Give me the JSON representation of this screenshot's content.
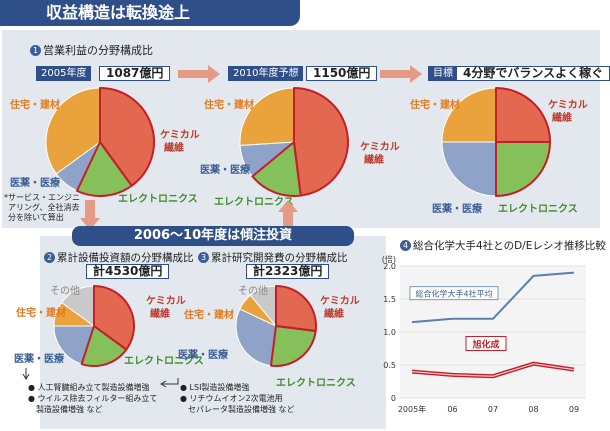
{
  "header": {
    "title": "収益構造は転換途上"
  },
  "section1": {
    "title": "営業利益の分野構成比",
    "num": "1",
    "pie2005": {
      "label": "2005年度",
      "value": "1087億円"
    },
    "pie2010": {
      "label": "2010年度予想",
      "value": "1150億円"
    },
    "goal": {
      "label": "目標",
      "value": "4分野でバランスよく稼ぐ"
    },
    "footnote": [
      "*サービス・エンジニ",
      "アリング、全社消去",
      "分を除いて算出"
    ]
  },
  "middle_banner": "2006〜10年度は傾注投資",
  "section2": {
    "num": "2",
    "title": "累計設備投資額の分野構成比",
    "total": "計4530億円",
    "notes": [
      "人工腎臓組み立て製造設備増強",
      "ウイルス除去フィルター組み立て",
      "製造設備増強 など"
    ]
  },
  "section3": {
    "num": "3",
    "title": "累計研究開発費の分野構成比",
    "total": "計2323億円",
    "notes": [
      "LSI製造設備増強",
      "リチウムイオン2次電池用",
      "セパレータ製造設備増強 など"
    ]
  },
  "section4": {
    "num": "4",
    "title": "総合化学大手4社とのD/Eレシオ推移比較"
  },
  "labels": {
    "housing": "住宅・建材",
    "chem_fiber_1": "ケミカル",
    "chem_fiber_2": "繊維",
    "medical": "医薬・医療",
    "electronics": "エレクトロニクス",
    "other": "その他"
  },
  "colors": {
    "housing": "#eaa23c",
    "chemical": "#e2694f",
    "medical": "#8fa2c8",
    "electronics": "#86c05a",
    "other": "#c9c9c9",
    "highlight": "#c41e2a",
    "navy": "#2f4f89"
  },
  "chart_data": [
    {
      "type": "pie",
      "title": "2005年度",
      "categories": [
        "ケミカル繊維",
        "エレクトロニクス",
        "医薬・医療",
        "住宅・建材"
      ],
      "values": [
        40,
        17,
        8,
        35
      ]
    },
    {
      "type": "pie",
      "title": "2010年度予想",
      "categories": [
        "ケミカル繊維",
        "エレクトロニクス",
        "医薬・医療",
        "住宅・建材"
      ],
      "values": [
        48,
        16,
        10,
        26
      ]
    },
    {
      "type": "pie",
      "title": "目標",
      "categories": [
        "ケミカル繊維",
        "エレクトロニクス",
        "医薬・医療",
        "住宅・建材"
      ],
      "values": [
        25,
        25,
        25,
        25
      ]
    },
    {
      "type": "pie",
      "title": "累計設備投資額の分野構成比",
      "categories": [
        "ケミカル繊維",
        "エレクトロニクス",
        "医薬・医療",
        "住宅・建材",
        "その他"
      ],
      "values": [
        35,
        20,
        20,
        10,
        15
      ]
    },
    {
      "type": "pie",
      "title": "累計研究開発費の分野構成比",
      "categories": [
        "ケミカル繊維",
        "エレクトロニクス",
        "医薬・医療",
        "住宅・建材",
        "その他"
      ],
      "values": [
        27,
        25,
        30,
        7,
        11
      ]
    },
    {
      "type": "line",
      "title": "総合化学大手4社とのD/Eレシオ推移比較",
      "x": [
        "2005年",
        "06",
        "07",
        "08",
        "09"
      ],
      "ylim": [
        0,
        2.0
      ],
      "yunit": "(倍)",
      "yticks": [
        "0",
        "0.5",
        "1.0",
        "1.5",
        "2.0"
      ],
      "series": [
        {
          "name": "総合化学大手4社平均",
          "values": [
            1.15,
            1.2,
            1.2,
            1.85,
            1.9
          ]
        },
        {
          "name": "旭化成",
          "values": [
            0.4,
            0.35,
            0.33,
            0.52,
            0.43
          ]
        }
      ]
    }
  ]
}
